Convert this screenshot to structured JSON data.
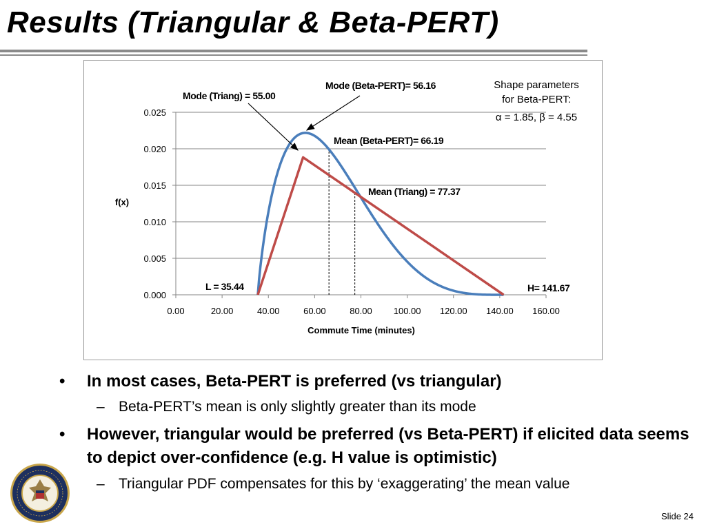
{
  "slide": {
    "title": "Results (Triangular & Beta-PERT)",
    "slide_number": "Slide 24",
    "seal_text": "DEPARTMENT OF THE NAVY · CENTER FOR COST ANALYSIS"
  },
  "bullets": [
    {
      "level": 1,
      "text": "In most cases, Beta-PERT is preferred (vs triangular)"
    },
    {
      "level": 2,
      "text": "Beta-PERT’s mean is only slightly greater than its mode"
    },
    {
      "level": 1,
      "text": "However, triangular would be preferred (vs Beta-PERT) if elicited data seems to depict over-confidence (e.g. H value is optimistic)"
    },
    {
      "level": 2,
      "text": "Triangular PDF compensates for this by ‘exaggerating’ the mean value"
    }
  ],
  "colors": {
    "beta_pert": "#4a7ebb",
    "triangular": "#be4b48",
    "gridline": "#868686",
    "rule": "#8a8a8a"
  },
  "chart_data": {
    "type": "line",
    "xlabel": "Commute Time (minutes)",
    "ylabel": "f(x)",
    "xlim": [
      0,
      160
    ],
    "ylim": [
      0,
      0.025
    ],
    "x_ticks": [
      0,
      20,
      40,
      60,
      80,
      100,
      120,
      140,
      160
    ],
    "x_tick_labels": [
      "0.00",
      "20.00",
      "40.00",
      "60.00",
      "80.00",
      "100.00",
      "120.00",
      "140.00",
      "160.00"
    ],
    "y_ticks": [
      0,
      0.005,
      0.01,
      0.015,
      0.02,
      0.025
    ],
    "y_tick_labels": [
      "0.000",
      "0.005",
      "0.010",
      "0.015",
      "0.020",
      "0.025"
    ],
    "grid": "horizontal",
    "legend": "none",
    "series": [
      {
        "name": "",
        "color_key": "beta_pert",
        "kind": "beta",
        "params": {
          "L": 35.44,
          "H": 141.67,
          "alpha": 1.85,
          "beta": 4.55
        }
      },
      {
        "name": "",
        "color_key": "triangular",
        "kind": "triangular",
        "x": [
          35.44,
          55.0,
          141.67
        ],
        "y": [
          0,
          0.01883,
          0
        ]
      }
    ],
    "vlines": [
      {
        "x": 66.19,
        "y": 0.01975
      },
      {
        "x": 77.37,
        "y": 0.0141
      }
    ],
    "annotations": [
      {
        "text": "Mode (Triang) = 55.00",
        "bold": true
      },
      {
        "text": "Mode (Beta-PERT)= 56.16",
        "bold": true
      },
      {
        "text": "Mean (Beta-PERT)= 66.19",
        "bold": true
      },
      {
        "text": "Mean (Triang) = 77.37",
        "bold": true
      },
      {
        "text": "L = 35.44",
        "bold": true
      },
      {
        "text": "H= 141.67",
        "bold": true
      }
    ],
    "shape_note": [
      "Shape parameters",
      "for Beta-PERT:",
      "α = 1.85, β = 4.55"
    ]
  }
}
